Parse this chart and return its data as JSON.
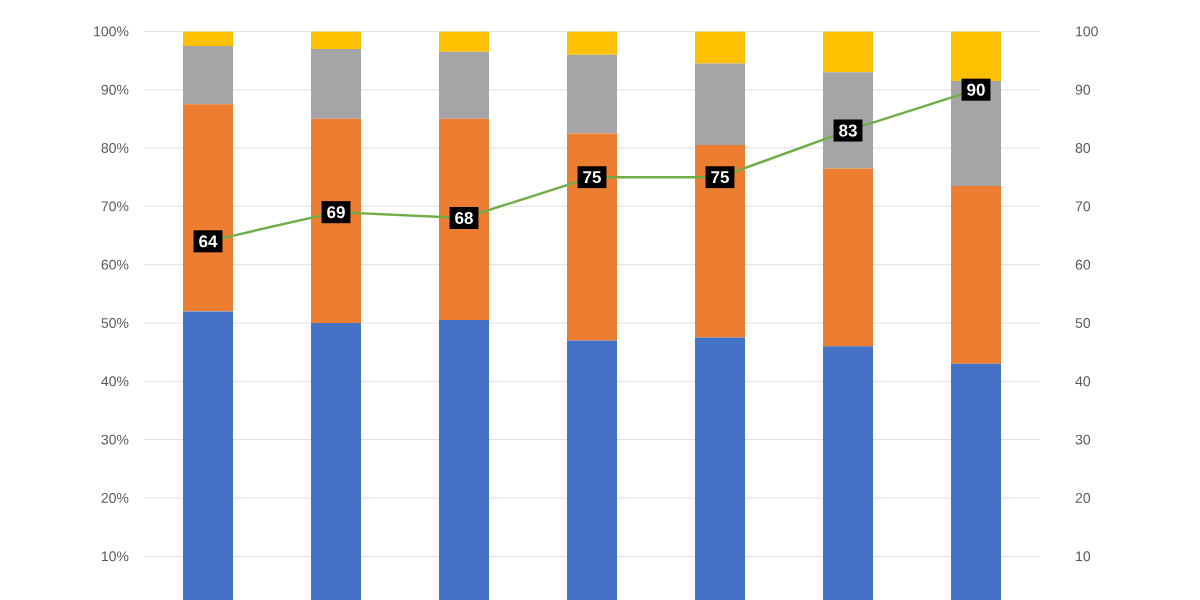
{
  "chart_data": {
    "type": "bar",
    "stacked": true,
    "grid": "y",
    "categories": [
      null,
      null,
      null,
      null,
      null,
      null,
      null
    ],
    "ylim": [
      2.5,
      100
    ],
    "yticks": [
      {
        "value": 10,
        "label": "10%"
      },
      {
        "value": 20,
        "label": "20%"
      },
      {
        "value": 30,
        "label": "30%"
      },
      {
        "value": 40,
        "label": "40%"
      },
      {
        "value": 50,
        "label": "50%"
      },
      {
        "value": 60,
        "label": "60%"
      },
      {
        "value": 70,
        "label": "70%"
      },
      {
        "value": 80,
        "label": "80%"
      },
      {
        "value": 90,
        "label": "90%"
      },
      {
        "value": 100,
        "label": "100%"
      }
    ],
    "y2lim": [
      2.5,
      100
    ],
    "y2ticks": [
      10,
      20,
      30,
      40,
      50,
      60,
      70,
      80,
      90,
      100
    ],
    "series": [
      {
        "color": "#4472c4",
        "values": [
          52,
          50,
          50.5,
          47,
          47.5,
          46,
          43
        ]
      },
      {
        "color": "#ed7d31",
        "values": [
          35.5,
          35,
          34.5,
          35.5,
          33,
          30.5,
          30.5
        ]
      },
      {
        "color": "#a5a5a5",
        "values": [
          10,
          12,
          11.5,
          13.5,
          14,
          16.5,
          18
        ]
      },
      {
        "color": "#ffc000",
        "values": [
          2.5,
          3,
          3.5,
          4,
          5.5,
          7,
          8.5
        ]
      },
      {
        "type": "line",
        "axis": "y2",
        "color": "#70ad47",
        "marker": "square",
        "values": [
          64,
          69,
          68,
          75,
          75,
          83,
          90
        ],
        "value_labels": [
          "64",
          "69",
          "68",
          "75",
          "75",
          "83",
          "90"
        ]
      }
    ]
  }
}
